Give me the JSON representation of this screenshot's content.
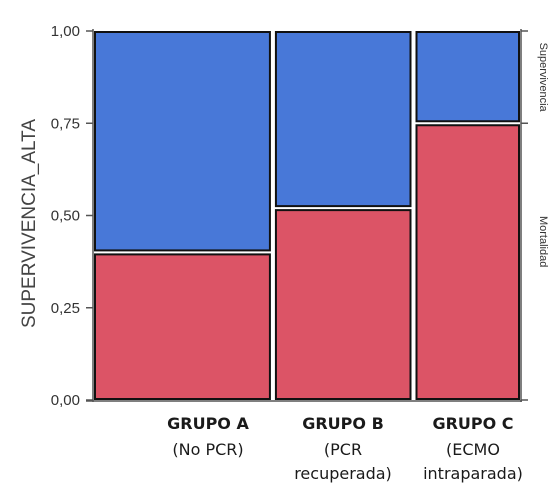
{
  "chart_data": {
    "type": "mosaic",
    "ylabel": "SUPERVIVENCIA_ALTA",
    "ylim": [
      0,
      1
    ],
    "yticks": [
      "0,00",
      "0,25",
      "0,50",
      "0,75",
      "1,00"
    ],
    "categories": [
      {
        "name": "GRUPO A",
        "sub": [
          "(No PCR)"
        ]
      },
      {
        "name": "GRUPO B",
        "sub": [
          "(PCR",
          "recuperada)"
        ]
      },
      {
        "name": "GRUPO C",
        "sub": [
          "(ECMO",
          "intraparada)"
        ]
      }
    ],
    "category_widths": [
      0.42,
      0.33,
      0.25
    ],
    "series": [
      {
        "name": "Mortalidad",
        "color": "#dc5466",
        "values": [
          0.4,
          0.52,
          0.75
        ]
      },
      {
        "name": "Supervivencia",
        "color": "#4878d8",
        "values": [
          0.6,
          0.48,
          0.25
        ]
      }
    ],
    "right_labels": [
      "Supervivencia",
      "Mortalidad"
    ]
  }
}
